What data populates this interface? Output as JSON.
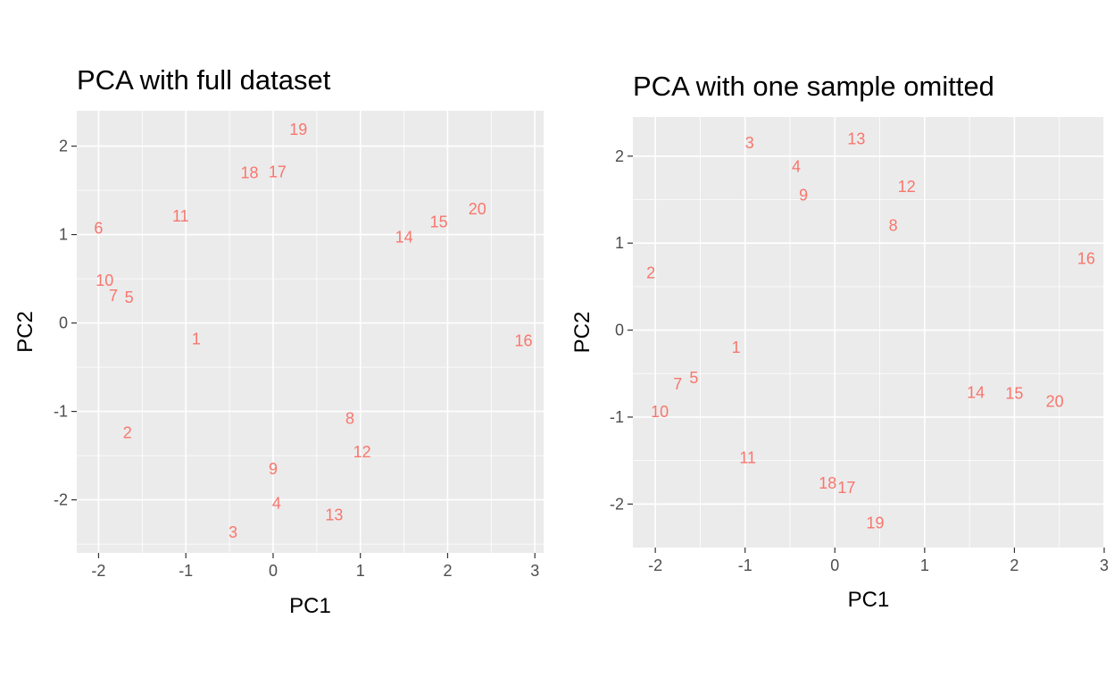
{
  "chart_data": [
    {
      "type": "scatter",
      "title": "PCA with full dataset",
      "xlabel": "PC1",
      "ylabel": "PC2",
      "xlim": [
        -2.25,
        3.1
      ],
      "ylim": [
        -2.6,
        2.4
      ],
      "xticks": [
        -2,
        -1,
        0,
        1,
        2,
        3
      ],
      "yticks": [
        -2,
        -1,
        0,
        1,
        2
      ],
      "grid": true,
      "point_color": "#F8766D",
      "points": [
        {
          "label": "1",
          "x": -0.88,
          "y": -0.18
        },
        {
          "label": "2",
          "x": -1.67,
          "y": -1.24
        },
        {
          "label": "3",
          "x": -0.46,
          "y": -2.37
        },
        {
          "label": "4",
          "x": 0.04,
          "y": -2.04
        },
        {
          "label": "5",
          "x": -1.65,
          "y": 0.29
        },
        {
          "label": "6",
          "x": -2.0,
          "y": 1.07
        },
        {
          "label": "7",
          "x": -1.83,
          "y": 0.31
        },
        {
          "label": "8",
          "x": 0.88,
          "y": -1.08
        },
        {
          "label": "9",
          "x": 0.0,
          "y": -1.65
        },
        {
          "label": "10",
          "x": -1.93,
          "y": 0.48
        },
        {
          "label": "11",
          "x": -1.06,
          "y": 1.21
        },
        {
          "label": "12",
          "x": 1.02,
          "y": -1.46
        },
        {
          "label": "13",
          "x": 0.7,
          "y": -2.17
        },
        {
          "label": "14",
          "x": 1.5,
          "y": 0.97
        },
        {
          "label": "15",
          "x": 1.9,
          "y": 1.14
        },
        {
          "label": "16",
          "x": 2.87,
          "y": -0.2
        },
        {
          "label": "17",
          "x": 0.05,
          "y": 1.71
        },
        {
          "label": "18",
          "x": -0.27,
          "y": 1.7
        },
        {
          "label": "19",
          "x": 0.29,
          "y": 2.19
        },
        {
          "label": "20",
          "x": 2.34,
          "y": 1.29
        }
      ]
    },
    {
      "type": "scatter",
      "title": "PCA with one sample omitted",
      "xlabel": "PC1",
      "ylabel": "PC2",
      "xlim": [
        -2.25,
        3.0
      ],
      "ylim": [
        -2.5,
        2.45
      ],
      "xticks": [
        -2,
        -1,
        0,
        1,
        2,
        3
      ],
      "yticks": [
        -2,
        -1,
        0,
        1,
        2
      ],
      "grid": true,
      "point_color": "#F8766D",
      "points": [
        {
          "label": "1",
          "x": -1.1,
          "y": -0.2
        },
        {
          "label": "2",
          "x": -2.05,
          "y": 0.66
        },
        {
          "label": "3",
          "x": -0.95,
          "y": 2.15
        },
        {
          "label": "4",
          "x": -0.43,
          "y": 1.88
        },
        {
          "label": "5",
          "x": -1.57,
          "y": -0.55
        },
        {
          "label": "7",
          "x": -1.75,
          "y": -0.62
        },
        {
          "label": "8",
          "x": 0.65,
          "y": 1.2
        },
        {
          "label": "9",
          "x": -0.35,
          "y": 1.55
        },
        {
          "label": "10",
          "x": -1.95,
          "y": -0.94
        },
        {
          "label": "11",
          "x": -0.97,
          "y": -1.47
        },
        {
          "label": "12",
          "x": 0.8,
          "y": 1.65
        },
        {
          "label": "13",
          "x": 0.24,
          "y": 2.2
        },
        {
          "label": "14",
          "x": 1.57,
          "y": -0.72
        },
        {
          "label": "15",
          "x": 2.0,
          "y": -0.73
        },
        {
          "label": "16",
          "x": 2.8,
          "y": 0.82
        },
        {
          "label": "17",
          "x": 0.13,
          "y": -1.81
        },
        {
          "label": "18",
          "x": -0.08,
          "y": -1.76
        },
        {
          "label": "19",
          "x": 0.45,
          "y": -2.22
        },
        {
          "label": "20",
          "x": 2.45,
          "y": -0.82
        }
      ]
    }
  ]
}
